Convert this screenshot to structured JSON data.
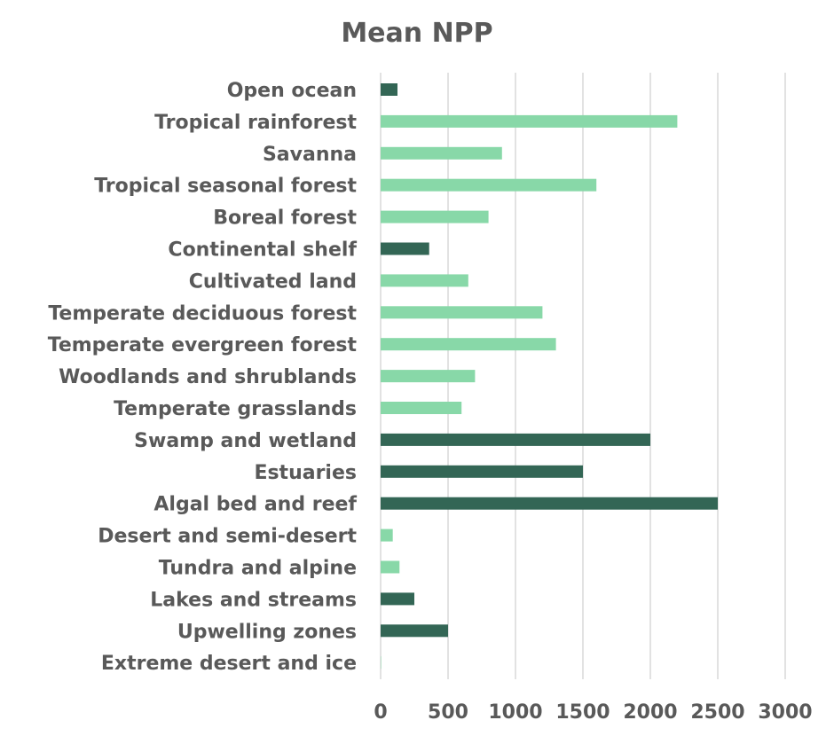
{
  "chart_data": {
    "type": "bar",
    "orientation": "horizontal",
    "title": "Mean NPP",
    "xlabel": "",
    "ylabel": "",
    "xlim": [
      0,
      3000
    ],
    "xticks": [
      0,
      500,
      1000,
      1500,
      2000,
      2500,
      3000
    ],
    "grid": "vertical",
    "legend": "none",
    "categories": [
      "Open ocean",
      "Tropical rainforest",
      "Savanna",
      "Tropical seasonal forest",
      "Boreal forest",
      "Continental shelf",
      "Cultivated land",
      "Temperate deciduous forest",
      "Temperate evergreen forest",
      "Woodlands and shrublands",
      "Temperate grasslands",
      "Swamp and wetland",
      "Estuaries",
      "Algal bed and reef",
      "Desert and semi-desert",
      "Tundra and alpine",
      "Lakes and streams",
      "Upwelling zones",
      "Extreme desert and ice"
    ],
    "values": [
      125,
      2200,
      900,
      1600,
      800,
      360,
      650,
      1200,
      1300,
      700,
      600,
      2000,
      1500,
      2500,
      90,
      140,
      250,
      500,
      3
    ],
    "bar_types": [
      "aquatic",
      "terrestrial",
      "terrestrial",
      "terrestrial",
      "terrestrial",
      "aquatic",
      "terrestrial",
      "terrestrial",
      "terrestrial",
      "terrestrial",
      "terrestrial",
      "aquatic",
      "aquatic",
      "aquatic",
      "terrestrial",
      "terrestrial",
      "aquatic",
      "aquatic",
      "terrestrial"
    ],
    "colors": {
      "aquatic": "#336655",
      "terrestrial": "#88d8a8"
    }
  }
}
